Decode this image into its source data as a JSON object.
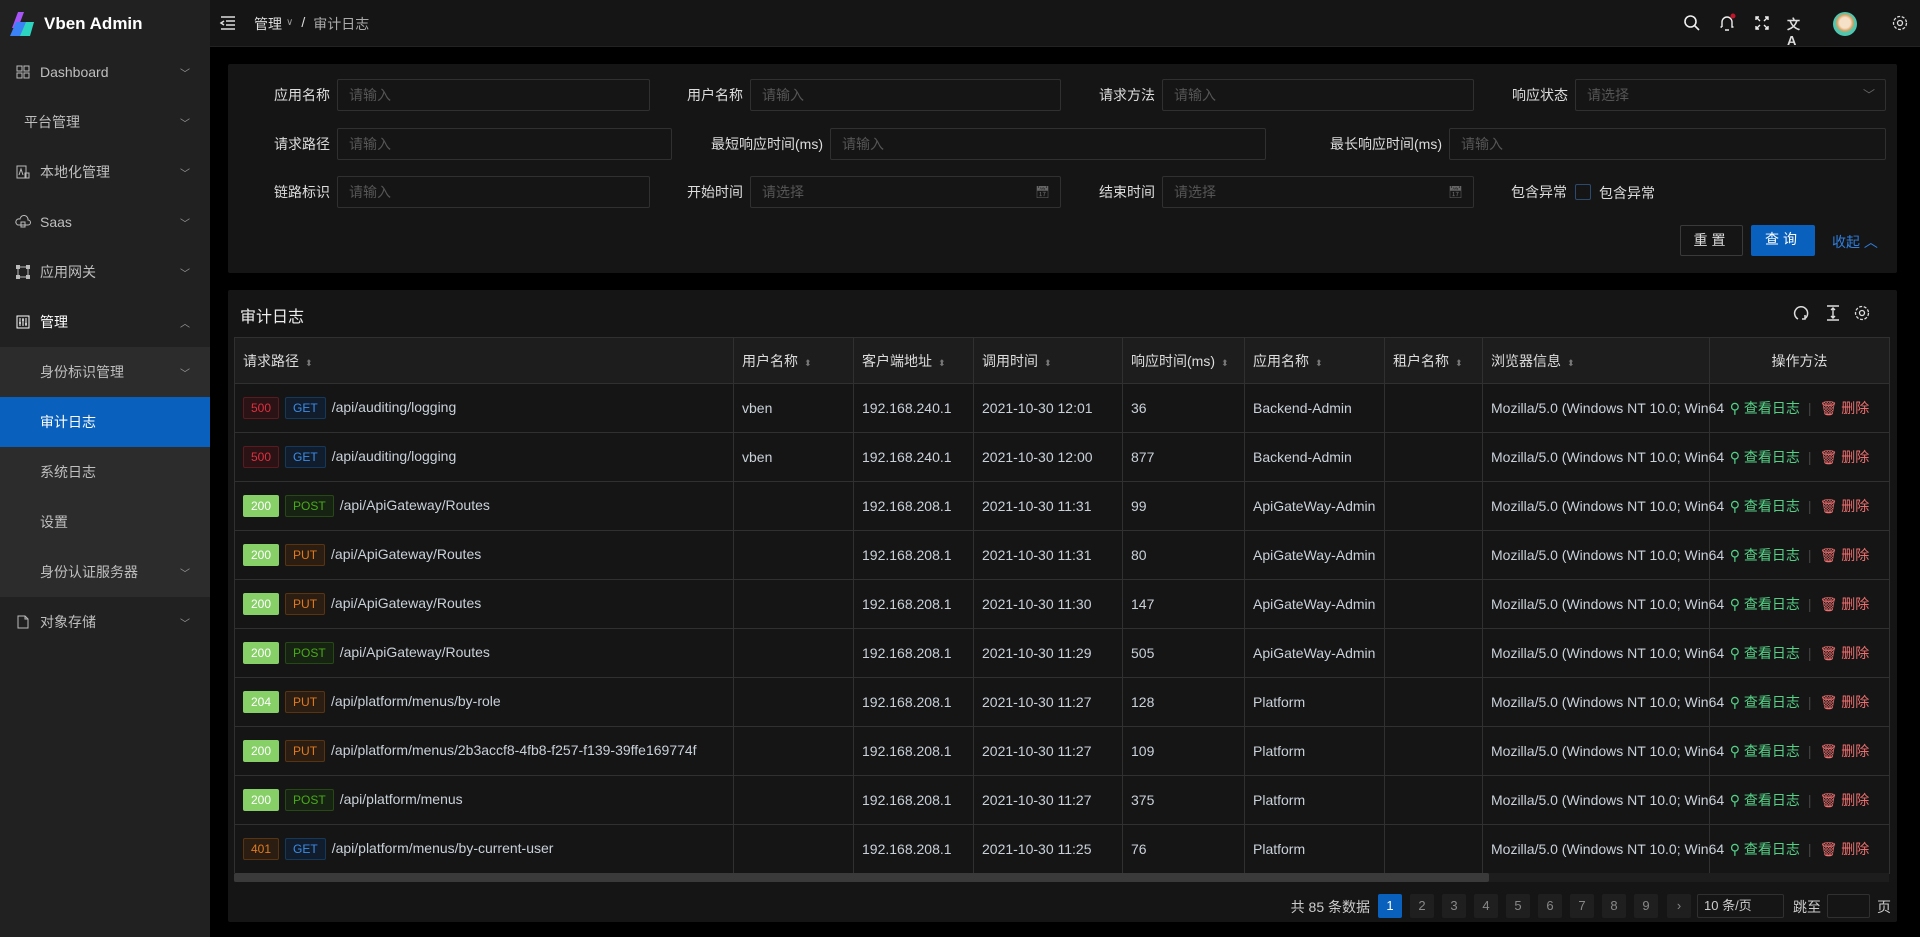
{
  "app": {
    "title": "Vben Admin"
  },
  "colors": {
    "accent": "#0960bd",
    "success": "#55d187",
    "danger": "#ed6f6f",
    "sidebar": "#212121",
    "panel": "#151515"
  },
  "sidebar": {
    "items": [
      {
        "label": "Dashboard",
        "icon": "dashboard-icon",
        "chevron": "down"
      },
      {
        "label": "平台管理",
        "icon": "",
        "chevron": "down"
      },
      {
        "label": "本地化管理",
        "icon": "translate-icon",
        "chevron": "down"
      },
      {
        "label": "Saas",
        "icon": "cloud-icon",
        "chevron": "down"
      },
      {
        "label": "应用网关",
        "icon": "gateway-icon",
        "chevron": "down"
      },
      {
        "label": "管理",
        "icon": "sliders-icon",
        "chevron": "up"
      },
      {
        "label": "身份标识管理",
        "sub": true,
        "chevron": "down"
      },
      {
        "label": "审计日志",
        "sub": true,
        "active": true
      },
      {
        "label": "系统日志",
        "sub": true
      },
      {
        "label": "设置",
        "sub": true
      },
      {
        "label": "身份认证服务器",
        "sub": true,
        "chevron": "down"
      },
      {
        "label": "对象存储",
        "icon": "file-icon",
        "chevron": "down"
      }
    ]
  },
  "header": {
    "breadcrumb": [
      "管理",
      "审计日志"
    ],
    "separator": "/",
    "icons": [
      "search-icon",
      "bell-icon",
      "fullscreen-icon",
      "language-icon",
      "avatar",
      "settings-icon"
    ]
  },
  "filter": {
    "app_name": {
      "label": "应用名称",
      "placeholder": "请输入"
    },
    "user_name": {
      "label": "用户名称",
      "placeholder": "请输入"
    },
    "method": {
      "label": "请求方法",
      "placeholder": "请输入"
    },
    "status": {
      "label": "响应状态",
      "placeholder": "请选择"
    },
    "path": {
      "label": "请求路径",
      "placeholder": "请输入"
    },
    "min_time": {
      "label": "最短响应时间(ms)",
      "placeholder": "请输入"
    },
    "max_time": {
      "label": "最长响应时间(ms)",
      "placeholder": "请输入"
    },
    "trace": {
      "label": "链路标识",
      "placeholder": "请输入"
    },
    "start": {
      "label": "开始时间",
      "placeholder": "请选择"
    },
    "end": {
      "label": "结束时间",
      "placeholder": "请选择"
    },
    "exception": {
      "label": "包含异常",
      "checkbox_label": "包含异常",
      "checked": false
    },
    "reset": "重置",
    "query": "查询",
    "collapse": "收起"
  },
  "table": {
    "title": "审计日志",
    "columns": [
      "请求路径",
      "用户名称",
      "客户端地址",
      "调用时间",
      "响应时间(ms)",
      "应用名称",
      "租户名称",
      "浏览器信息",
      "操作方法"
    ],
    "view_label": "查看日志",
    "delete_label": "删除",
    "rows": [
      {
        "status": "500",
        "method": "GET",
        "path": "/api/auditing/logging",
        "user": "vben",
        "ip": "192.168.240.1",
        "time": "2021-10-30 12:01",
        "duration": "36",
        "app": "Backend-Admin",
        "tenant": "",
        "browser": "Mozilla/5.0 (Windows NT 10.0; Win64"
      },
      {
        "status": "500",
        "method": "GET",
        "path": "/api/auditing/logging",
        "user": "vben",
        "ip": "192.168.240.1",
        "time": "2021-10-30 12:00",
        "duration": "877",
        "app": "Backend-Admin",
        "tenant": "",
        "browser": "Mozilla/5.0 (Windows NT 10.0; Win64"
      },
      {
        "status": "200",
        "method": "POST",
        "path": "/api/ApiGateway/Routes",
        "user": "",
        "ip": "192.168.208.1",
        "time": "2021-10-30 11:31",
        "duration": "99",
        "app": "ApiGateWay-Admin",
        "tenant": "",
        "browser": "Mozilla/5.0 (Windows NT 10.0; Win64"
      },
      {
        "status": "200",
        "method": "PUT",
        "path": "/api/ApiGateway/Routes",
        "user": "",
        "ip": "192.168.208.1",
        "time": "2021-10-30 11:31",
        "duration": "80",
        "app": "ApiGateWay-Admin",
        "tenant": "",
        "browser": "Mozilla/5.0 (Windows NT 10.0; Win64"
      },
      {
        "status": "200",
        "method": "PUT",
        "path": "/api/ApiGateway/Routes",
        "user": "",
        "ip": "192.168.208.1",
        "time": "2021-10-30 11:30",
        "duration": "147",
        "app": "ApiGateWay-Admin",
        "tenant": "",
        "browser": "Mozilla/5.0 (Windows NT 10.0; Win64"
      },
      {
        "status": "200",
        "method": "POST",
        "path": "/api/ApiGateway/Routes",
        "user": "",
        "ip": "192.168.208.1",
        "time": "2021-10-30 11:29",
        "duration": "505",
        "app": "ApiGateWay-Admin",
        "tenant": "",
        "browser": "Mozilla/5.0 (Windows NT 10.0; Win64"
      },
      {
        "status": "204",
        "method": "PUT",
        "path": "/api/platform/menus/by-role",
        "user": "",
        "ip": "192.168.208.1",
        "time": "2021-10-30 11:27",
        "duration": "128",
        "app": "Platform",
        "tenant": "",
        "browser": "Mozilla/5.0 (Windows NT 10.0; Win64"
      },
      {
        "status": "200",
        "method": "PUT",
        "path": "/api/platform/menus/2b3accf8-4fb8-f257-f139-39ffe169774f",
        "user": "",
        "ip": "192.168.208.1",
        "time": "2021-10-30 11:27",
        "duration": "109",
        "app": "Platform",
        "tenant": "",
        "browser": "Mozilla/5.0 (Windows NT 10.0; Win64"
      },
      {
        "status": "200",
        "method": "POST",
        "path": "/api/platform/menus",
        "user": "",
        "ip": "192.168.208.1",
        "time": "2021-10-30 11:27",
        "duration": "375",
        "app": "Platform",
        "tenant": "",
        "browser": "Mozilla/5.0 (Windows NT 10.0; Win64"
      },
      {
        "status": "401",
        "method": "GET",
        "path": "/api/platform/menus/by-current-user",
        "user": "",
        "ip": "192.168.208.1",
        "time": "2021-10-30 11:25",
        "duration": "76",
        "app": "Platform",
        "tenant": "",
        "browser": "Mozilla/5.0 (Windows NT 10.0; Win64"
      }
    ]
  },
  "pagination": {
    "total_text": "共 85 条数据",
    "pages": [
      "1",
      "2",
      "3",
      "4",
      "5",
      "6",
      "7",
      "8",
      "9"
    ],
    "current": "1",
    "page_size": "10 条/页",
    "jump_label": "跳至",
    "page_suffix": "页"
  }
}
